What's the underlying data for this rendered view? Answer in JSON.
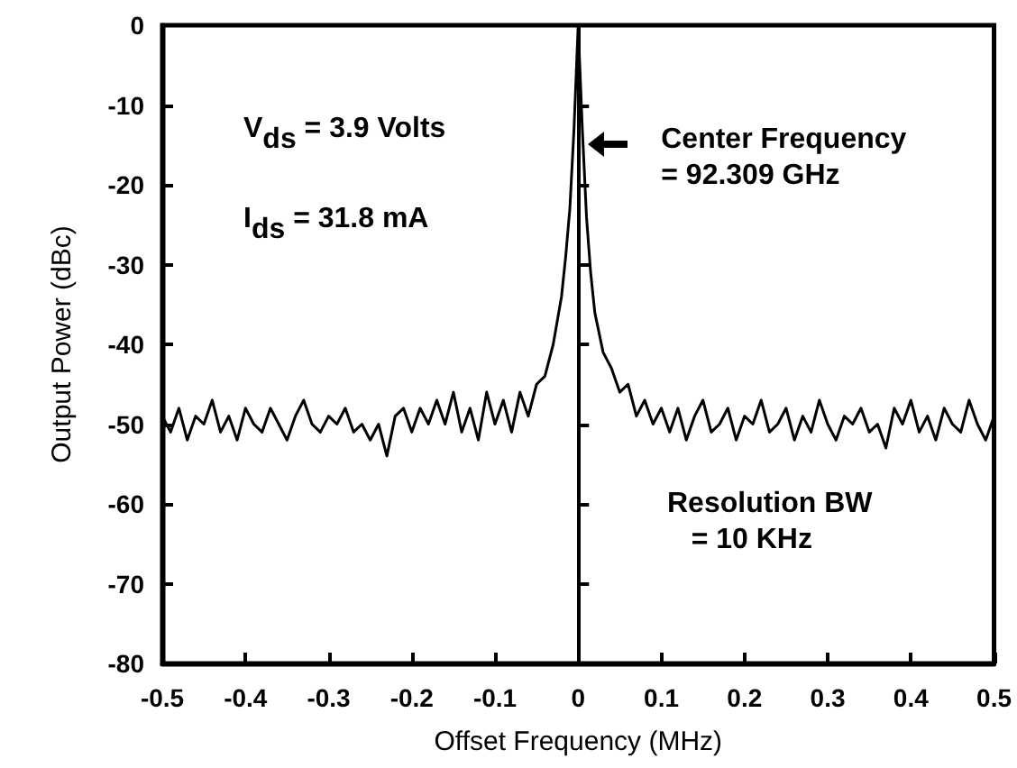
{
  "chart_data": {
    "type": "line",
    "xlabel": "Offset Frequency (MHz)",
    "ylabel": "Output Power (dBc)",
    "xlim": [
      -0.5,
      0.5
    ],
    "xticks": [
      -0.5,
      -0.4,
      -0.3,
      -0.2,
      -0.1,
      0,
      0.1,
      0.2,
      0.3,
      0.4,
      0.5
    ],
    "ylim": [
      -80,
      0
    ],
    "yticks": [
      -80,
      -70,
      -60,
      -50,
      -40,
      -30,
      -20,
      -10,
      0
    ],
    "grid": false,
    "marker": "none",
    "line_style": "solid",
    "ref_lines": [
      {
        "axis": "x",
        "value": 0,
        "color": "#000000"
      }
    ],
    "series": [
      {
        "color": "#000000",
        "x": [
          -0.5,
          -0.49,
          -0.48,
          -0.47,
          -0.46,
          -0.45,
          -0.44,
          -0.43,
          -0.42,
          -0.41,
          -0.4,
          -0.39,
          -0.38,
          -0.37,
          -0.36,
          -0.35,
          -0.34,
          -0.33,
          -0.32,
          -0.31,
          -0.3,
          -0.29,
          -0.28,
          -0.27,
          -0.26,
          -0.25,
          -0.24,
          -0.23,
          -0.22,
          -0.21,
          -0.2,
          -0.19,
          -0.18,
          -0.17,
          -0.16,
          -0.15,
          -0.14,
          -0.13,
          -0.12,
          -0.11,
          -0.1,
          -0.09,
          -0.08,
          -0.07,
          -0.06,
          -0.05,
          -0.04,
          -0.03,
          -0.02,
          -0.015,
          -0.01,
          -0.005,
          0,
          0.005,
          0.01,
          0.015,
          0.02,
          0.03,
          0.04,
          0.05,
          0.06,
          0.07,
          0.08,
          0.09,
          0.1,
          0.11,
          0.12,
          0.13,
          0.14,
          0.15,
          0.16,
          0.17,
          0.18,
          0.19,
          0.2,
          0.21,
          0.22,
          0.23,
          0.24,
          0.25,
          0.26,
          0.27,
          0.28,
          0.29,
          0.3,
          0.31,
          0.32,
          0.33,
          0.34,
          0.35,
          0.36,
          0.37,
          0.38,
          0.39,
          0.4,
          0.41,
          0.42,
          0.43,
          0.44,
          0.45,
          0.46,
          0.47,
          0.48,
          0.49,
          0.5
        ],
        "values": [
          -49,
          -51,
          -48,
          -52,
          -49,
          -50,
          -47,
          -51,
          -49,
          -52,
          -48,
          -50,
          -51,
          -48,
          -50,
          -52,
          -49,
          -47,
          -50,
          -51,
          -49,
          -50,
          -48,
          -51,
          -50,
          -52,
          -50,
          -54,
          -49,
          -48,
          -51,
          -48,
          -50,
          -47,
          -50,
          -46,
          -51,
          -48,
          -52,
          -46,
          -50,
          -47,
          -51,
          -46,
          -49,
          -45,
          -44,
          -40,
          -34,
          -29,
          -23,
          -13,
          0,
          -13,
          -24,
          -31,
          -36,
          -41,
          -43,
          -46,
          -45,
          -49,
          -47,
          -50,
          -48,
          -51,
          -48,
          -52,
          -49,
          -47,
          -51,
          -50,
          -48,
          -52,
          -49,
          -50,
          -47,
          -51,
          -50,
          -48,
          -52,
          -49,
          -51,
          -47,
          -50,
          -52,
          -49,
          -50,
          -48,
          -51,
          -50,
          -53,
          -48,
          -50,
          -47,
          -51,
          -49,
          -52,
          -48,
          -50,
          -51,
          -47,
          -50,
          -52,
          -49
        ]
      }
    ],
    "annotations": [
      "V$_{ds}$ = 3.9 Volts",
      "I$_{ds}$ = 31.8 mA",
      {
        "text": "Center Frequency\n= 92.309 GHz",
        "x": 0,
        "y": -15
      },
      "Resolution BW\n   = 10 KHz"
    ]
  }
}
